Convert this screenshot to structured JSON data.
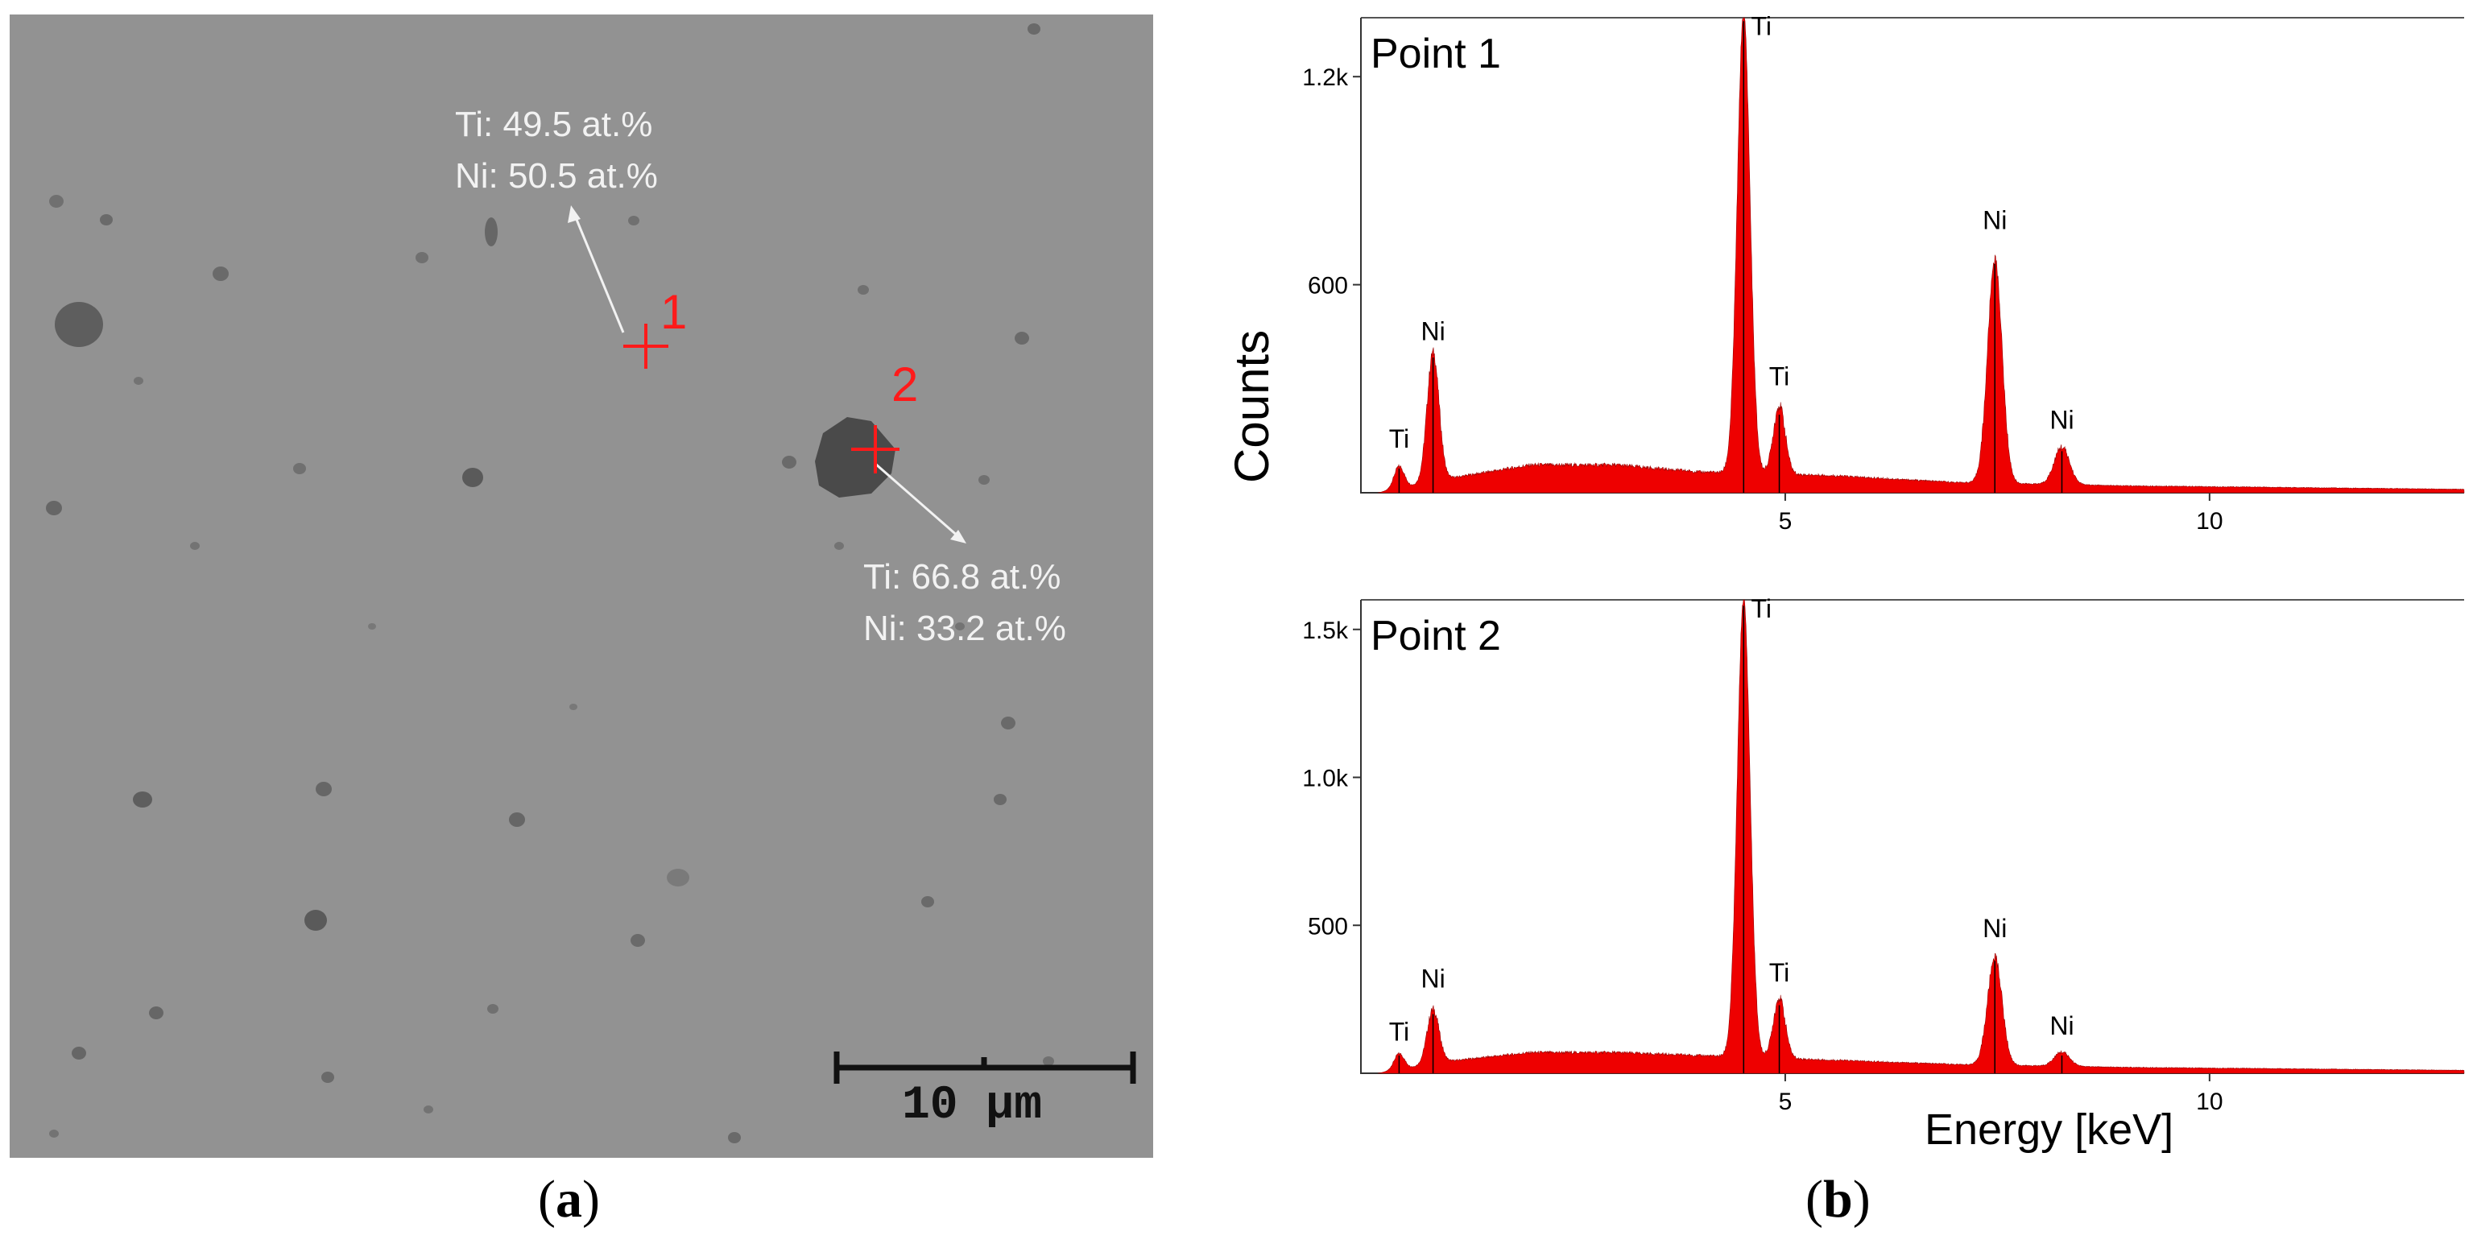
{
  "figure": {
    "panel_a_label": "a",
    "panel_b_label": "b"
  },
  "sem_image": {
    "scale_bar_text": "10 µm",
    "point1": {
      "label": "1",
      "ti_text": "Ti: 49.5 at.%",
      "ni_text": "Ni: 50.5 at.%"
    },
    "point2": {
      "label": "2",
      "ti_text": "Ti: 66.8 at.%",
      "ni_text": "Ni: 33.2 at.%"
    },
    "colors": {
      "background": "#929292",
      "marker": "#ff1a1a",
      "annotation": "#f2f2f2"
    }
  },
  "chart_data": [
    {
      "type": "area",
      "title": "Point 1",
      "xlabel": "Energy [keV]",
      "ylabel": "Counts",
      "xlim": [
        0,
        13
      ],
      "ylim": [
        0,
        1370
      ],
      "x_ticks": [
        5,
        10
      ],
      "x_tick_labels": [
        "5",
        "10"
      ],
      "y_ticks": [
        600,
        1200
      ],
      "y_tick_labels": [
        "600",
        "1.2k"
      ],
      "color": "#ee0000",
      "peaks": [
        {
          "element": "Ti",
          "energy": 0.45,
          "counts": 70,
          "label_counts": 130
        },
        {
          "element": "Ni",
          "energy": 0.85,
          "counts": 390,
          "label_counts": 440
        },
        {
          "element": "Ti",
          "energy": 4.51,
          "counts": 1360,
          "label_counts": 1320
        },
        {
          "element": "Ti",
          "energy": 4.93,
          "counts": 225,
          "label_counts": 310
        },
        {
          "element": "Ni",
          "energy": 7.47,
          "counts": 660,
          "label_counts": 760
        },
        {
          "element": "Ni",
          "energy": 8.26,
          "counts": 120,
          "label_counts": 185
        }
      ],
      "background": [
        {
          "energy": 1.0,
          "counts": 40
        },
        {
          "energy": 2.0,
          "counts": 80
        },
        {
          "energy": 3.0,
          "counts": 80
        },
        {
          "energy": 4.0,
          "counts": 60
        },
        {
          "energy": 5.5,
          "counts": 50
        },
        {
          "energy": 7.0,
          "counts": 30
        },
        {
          "energy": 9.0,
          "counts": 20
        },
        {
          "energy": 13.0,
          "counts": 10
        }
      ]
    },
    {
      "type": "area",
      "title": "Point 2",
      "xlabel": "Energy [keV]",
      "ylabel": "Counts",
      "xlim": [
        0,
        13
      ],
      "ylim": [
        0,
        1600
      ],
      "x_ticks": [
        5,
        10
      ],
      "x_tick_labels": [
        "5",
        "10"
      ],
      "y_ticks": [
        500,
        1000,
        1500
      ],
      "y_tick_labels": [
        "500",
        "1.0k",
        "1.5k"
      ],
      "color": "#ee0000",
      "peaks": [
        {
          "element": "Ti",
          "energy": 0.45,
          "counts": 60,
          "label_counts": 110
        },
        {
          "element": "Ni",
          "energy": 0.85,
          "counts": 200,
          "label_counts": 290
        },
        {
          "element": "Ti",
          "energy": 4.51,
          "counts": 1580,
          "label_counts": 1540
        },
        {
          "element": "Ti",
          "energy": 4.93,
          "counts": 230,
          "label_counts": 310
        },
        {
          "element": "Ni",
          "energy": 7.47,
          "counts": 380,
          "label_counts": 460
        },
        {
          "element": "Ni",
          "energy": 8.26,
          "counts": 60,
          "label_counts": 130
        }
      ],
      "background": [
        {
          "energy": 1.0,
          "counts": 40
        },
        {
          "energy": 2.0,
          "counts": 70
        },
        {
          "energy": 3.0,
          "counts": 70
        },
        {
          "energy": 4.0,
          "counts": 60
        },
        {
          "energy": 5.5,
          "counts": 45
        },
        {
          "energy": 7.0,
          "counts": 30
        },
        {
          "energy": 9.0,
          "counts": 20
        },
        {
          "energy": 13.0,
          "counts": 10
        }
      ]
    }
  ]
}
